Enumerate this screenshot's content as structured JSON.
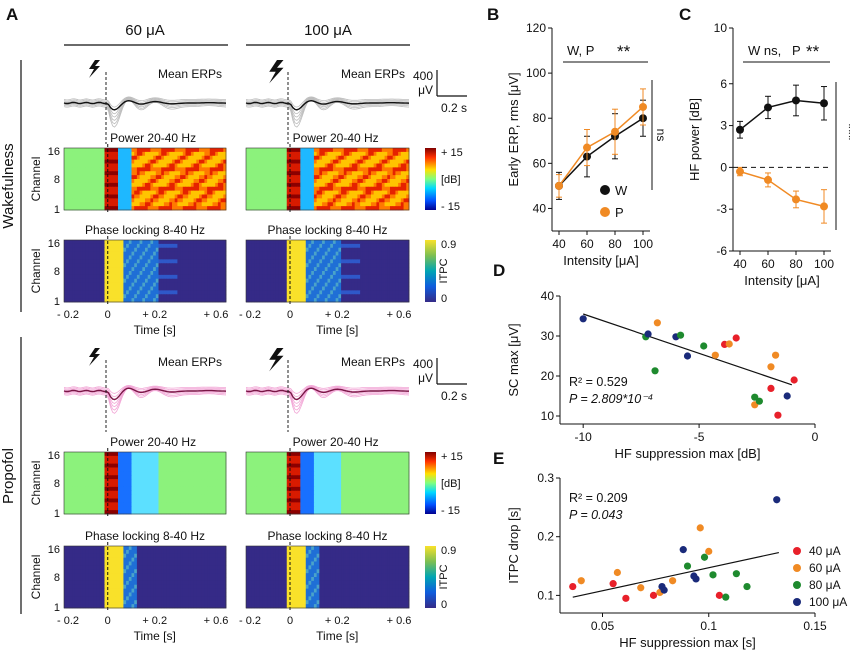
{
  "panel_labels": {
    "A": "A",
    "B": "B",
    "C": "C",
    "D": "D",
    "E": "E"
  },
  "panelA": {
    "col_titles": [
      "60 μA",
      "100 μA"
    ],
    "state_labels": [
      "Wakefulness",
      "Propofol"
    ],
    "row_titles": {
      "erp": "Mean ERPs",
      "power": "Power 20-40 Hz",
      "phase": "Phase locking 8-40 Hz"
    },
    "channel_label": "Channel",
    "channel_ticks": [
      "16",
      "8",
      "1"
    ],
    "time_ticks": [
      "- 0.2",
      "0",
      "+ 0.2",
      "+ 0.6"
    ],
    "time_label": "Time [s]",
    "scalebar": {
      "amp": "400",
      "unit": "μV",
      "time": "0.2 s"
    },
    "power_cbar": {
      "top": "+ 15",
      "mid": "[dB]",
      "bottom": "- 15"
    },
    "itpc_cbar": {
      "top": "0.9",
      "mid": "ITPC",
      "bottom": "0"
    },
    "colors": {
      "wake_erp": "#111111",
      "wake_erp_single": "#bdbdbd",
      "prop_erp": "#7a1646",
      "prop_erp_single": "#f2a6d6"
    }
  },
  "chart_data": [
    {
      "type": "line",
      "panel": "B",
      "xlabel": "Intensity [μA]",
      "ylabel": "Early ERP, rms [μV]",
      "x": [
        40,
        60,
        80,
        100
      ],
      "xlim": [
        35,
        105
      ],
      "ylim": [
        30,
        120
      ],
      "yticks": [
        40,
        60,
        80,
        100,
        120
      ],
      "xticks": [
        40,
        60,
        80,
        100
      ],
      "series": [
        {
          "name": "W",
          "color": "#111111",
          "values": [
            50,
            63,
            72,
            80
          ],
          "err": [
            6,
            9,
            10,
            8
          ]
        },
        {
          "name": "P",
          "color": "#f08a24",
          "values": [
            50,
            67,
            74,
            85
          ],
          "err": [
            5,
            8,
            10,
            8
          ]
        }
      ],
      "annotations": {
        "sig": "W, P",
        "stars": "**",
        "ns": "ns"
      }
    },
    {
      "type": "line",
      "panel": "C",
      "xlabel": "Intensity [μA]",
      "ylabel": "HF power [dB]",
      "x": [
        40,
        60,
        80,
        100
      ],
      "xlim": [
        35,
        105
      ],
      "ylim": [
        -6,
        10
      ],
      "yticks": [
        -6,
        -3,
        0,
        3,
        6,
        10
      ],
      "xticks": [
        40,
        60,
        80,
        100
      ],
      "series": [
        {
          "name": "W",
          "color": "#111111",
          "values": [
            2.7,
            4.3,
            4.8,
            4.6
          ],
          "err": [
            0.6,
            0.8,
            1.1,
            1.2
          ]
        },
        {
          "name": "P",
          "color": "#f08a24",
          "values": [
            -0.3,
            -0.9,
            -2.3,
            -2.8
          ],
          "err": [
            0.3,
            0.5,
            0.6,
            1.2
          ]
        }
      ],
      "annotations": {
        "sig": "W ns,",
        "sig2": "P",
        "stars": "**",
        "side_stars": "***"
      }
    },
    {
      "type": "scatter",
      "panel": "D",
      "xlabel": "HF suppression max [dB]",
      "ylabel": "SC max [μV]",
      "xlim": [
        -11,
        0
      ],
      "ylim": [
        8,
        40
      ],
      "xticks": [
        -10,
        -5,
        0
      ],
      "yticks": [
        10,
        20,
        30,
        40
      ],
      "stats": {
        "r2": "R² = 0.529",
        "p": "P = 2.809*10⁻⁴"
      },
      "fit": {
        "x": [
          -10,
          -1
        ],
        "y": [
          35.5,
          17.8
        ]
      },
      "points": [
        {
          "x": -10.0,
          "y": 34.3,
          "group": "100 μA"
        },
        {
          "x": -7.3,
          "y": 29.8,
          "group": "80 μA"
        },
        {
          "x": -7.2,
          "y": 30.5,
          "group": "100 μA"
        },
        {
          "x": -6.8,
          "y": 33.3,
          "group": "60 μA"
        },
        {
          "x": -6.9,
          "y": 21.3,
          "group": "80 μA"
        },
        {
          "x": -6.0,
          "y": 29.8,
          "group": "100 μA"
        },
        {
          "x": -5.8,
          "y": 30.2,
          "group": "80 μA"
        },
        {
          "x": -5.5,
          "y": 25.0,
          "group": "100 μA"
        },
        {
          "x": -4.8,
          "y": 27.5,
          "group": "80 μA"
        },
        {
          "x": -4.3,
          "y": 25.2,
          "group": "60 μA"
        },
        {
          "x": -3.9,
          "y": 27.9,
          "group": "40 μA"
        },
        {
          "x": -3.7,
          "y": 28.0,
          "group": "60 μA"
        },
        {
          "x": -3.4,
          "y": 29.5,
          "group": "40 μA"
        },
        {
          "x": -2.6,
          "y": 14.7,
          "group": "80 μA"
        },
        {
          "x": -2.6,
          "y": 12.8,
          "group": "60 μA"
        },
        {
          "x": -2.4,
          "y": 13.7,
          "group": "80 μA"
        },
        {
          "x": -1.9,
          "y": 22.3,
          "group": "60 μA"
        },
        {
          "x": -1.9,
          "y": 16.9,
          "group": "40 μA"
        },
        {
          "x": -1.6,
          "y": 10.2,
          "group": "40 μA"
        },
        {
          "x": -1.7,
          "y": 25.2,
          "group": "60 μA"
        },
        {
          "x": -1.2,
          "y": 15.0,
          "group": "100 μA"
        },
        {
          "x": -0.9,
          "y": 19.0,
          "group": "40 μA"
        }
      ]
    },
    {
      "type": "scatter",
      "panel": "E",
      "xlabel": "HF suppression max [s]",
      "ylabel": "ITPC drop [s]",
      "xlim": [
        0.03,
        0.15
      ],
      "ylim": [
        0.07,
        0.3
      ],
      "xticks": [
        0.05,
        0.1,
        0.15
      ],
      "yticks": [
        0.1,
        0.2,
        0.3
      ],
      "stats": {
        "r2": "R² = 0.209",
        "p": "P = 0.043"
      },
      "fit": {
        "x": [
          0.036,
          0.133
        ],
        "y": [
          0.097,
          0.173
        ]
      },
      "points": [
        {
          "x": 0.036,
          "y": 0.115,
          "group": "40 μA"
        },
        {
          "x": 0.04,
          "y": 0.125,
          "group": "60 μA"
        },
        {
          "x": 0.055,
          "y": 0.12,
          "group": "40 μA"
        },
        {
          "x": 0.057,
          "y": 0.139,
          "group": "60 μA"
        },
        {
          "x": 0.061,
          "y": 0.095,
          "group": "40 μA"
        },
        {
          "x": 0.068,
          "y": 0.113,
          "group": "60 μA"
        },
        {
          "x": 0.074,
          "y": 0.1,
          "group": "40 μA"
        },
        {
          "x": 0.077,
          "y": 0.105,
          "group": "60 μA"
        },
        {
          "x": 0.078,
          "y": 0.115,
          "group": "100 μA"
        },
        {
          "x": 0.079,
          "y": 0.109,
          "group": "100 μA"
        },
        {
          "x": 0.083,
          "y": 0.125,
          "group": "60 μA"
        },
        {
          "x": 0.088,
          "y": 0.178,
          "group": "100 μA"
        },
        {
          "x": 0.09,
          "y": 0.15,
          "group": "80 μA"
        },
        {
          "x": 0.093,
          "y": 0.133,
          "group": "100 μA"
        },
        {
          "x": 0.094,
          "y": 0.128,
          "group": "100 μA"
        },
        {
          "x": 0.096,
          "y": 0.215,
          "group": "60 μA"
        },
        {
          "x": 0.098,
          "y": 0.165,
          "group": "80 μA"
        },
        {
          "x": 0.1,
          "y": 0.175,
          "group": "60 μA"
        },
        {
          "x": 0.102,
          "y": 0.135,
          "group": "80 μA"
        },
        {
          "x": 0.105,
          "y": 0.1,
          "group": "40 μA"
        },
        {
          "x": 0.108,
          "y": 0.097,
          "group": "80 μA"
        },
        {
          "x": 0.113,
          "y": 0.137,
          "group": "80 μA"
        },
        {
          "x": 0.118,
          "y": 0.115,
          "group": "80 μA"
        },
        {
          "x": 0.132,
          "y": 0.263,
          "group": "100 μA"
        }
      ],
      "legend": [
        {
          "label": "40 μA",
          "color": "#e8202a"
        },
        {
          "label": "60 μA",
          "color": "#f08a24"
        },
        {
          "label": "80 μA",
          "color": "#1e8a2e"
        },
        {
          "label": "100 μA",
          "color": "#1a2a7a"
        }
      ]
    }
  ]
}
